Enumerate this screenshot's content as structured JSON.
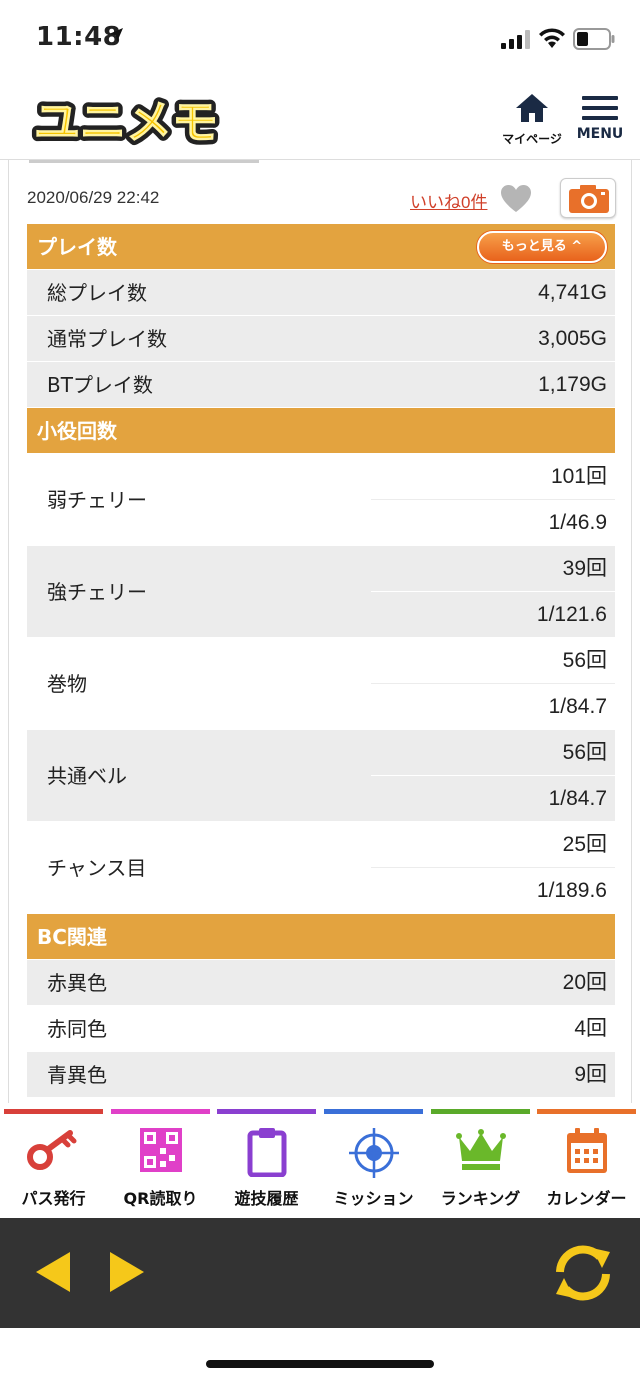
{
  "status_bar": {
    "time": "11:48"
  },
  "header": {
    "logo_text": "ユニメモ",
    "mypage_label": "マイページ",
    "menu_label": "MENU"
  },
  "record": {
    "date": "2020/06/29 22:42",
    "like_label": "いいね",
    "like_count": "0件"
  },
  "sections": {
    "play": {
      "title": "プレイ数",
      "more_label": "もっと見る ^",
      "rows": [
        {
          "label": "総プレイ数",
          "value": "4,741G"
        },
        {
          "label": "通常プレイ数",
          "value": "3,005G"
        },
        {
          "label": "BTプレイ数",
          "value": "1,179G"
        }
      ]
    },
    "small_roles": {
      "title": "小役回数",
      "rows": [
        {
          "label": "弱チェリー",
          "count": "101回",
          "prob": "1/46.9"
        },
        {
          "label": "強チェリー",
          "count": "39回",
          "prob": "1/121.6"
        },
        {
          "label": "巻物",
          "count": "56回",
          "prob": "1/84.7"
        },
        {
          "label": "共通ベル",
          "count": "56回",
          "prob": "1/84.7"
        },
        {
          "label": "チャンス目",
          "count": "25回",
          "prob": "1/189.6"
        }
      ]
    },
    "bc": {
      "title": "BC関連",
      "rows": [
        {
          "label": "赤異色",
          "value": "20回"
        },
        {
          "label": "赤同色",
          "value": "4回"
        },
        {
          "label": "青異色",
          "value": "9回"
        }
      ]
    }
  },
  "tabbar": {
    "items": [
      {
        "label": "パス発行",
        "icon": "key-icon",
        "color": "#d8403a"
      },
      {
        "label": "QR読取り",
        "icon": "qr-code-icon",
        "color": "#e040c8"
      },
      {
        "label": "遊技履歴",
        "icon": "clipboard-icon",
        "color": "#8a3fd0"
      },
      {
        "label": "ミッション",
        "icon": "target-icon",
        "color": "#3a6fd8"
      },
      {
        "label": "ランキング",
        "icon": "crown-icon",
        "color": "#5aaa2a"
      },
      {
        "label": "カレンダー",
        "icon": "calendar-icon",
        "color": "#e8702a"
      }
    ]
  },
  "colors": {
    "section_header": "#e3a33f",
    "browser_bar": "#333333",
    "browser_icon": "#f5c81a"
  }
}
